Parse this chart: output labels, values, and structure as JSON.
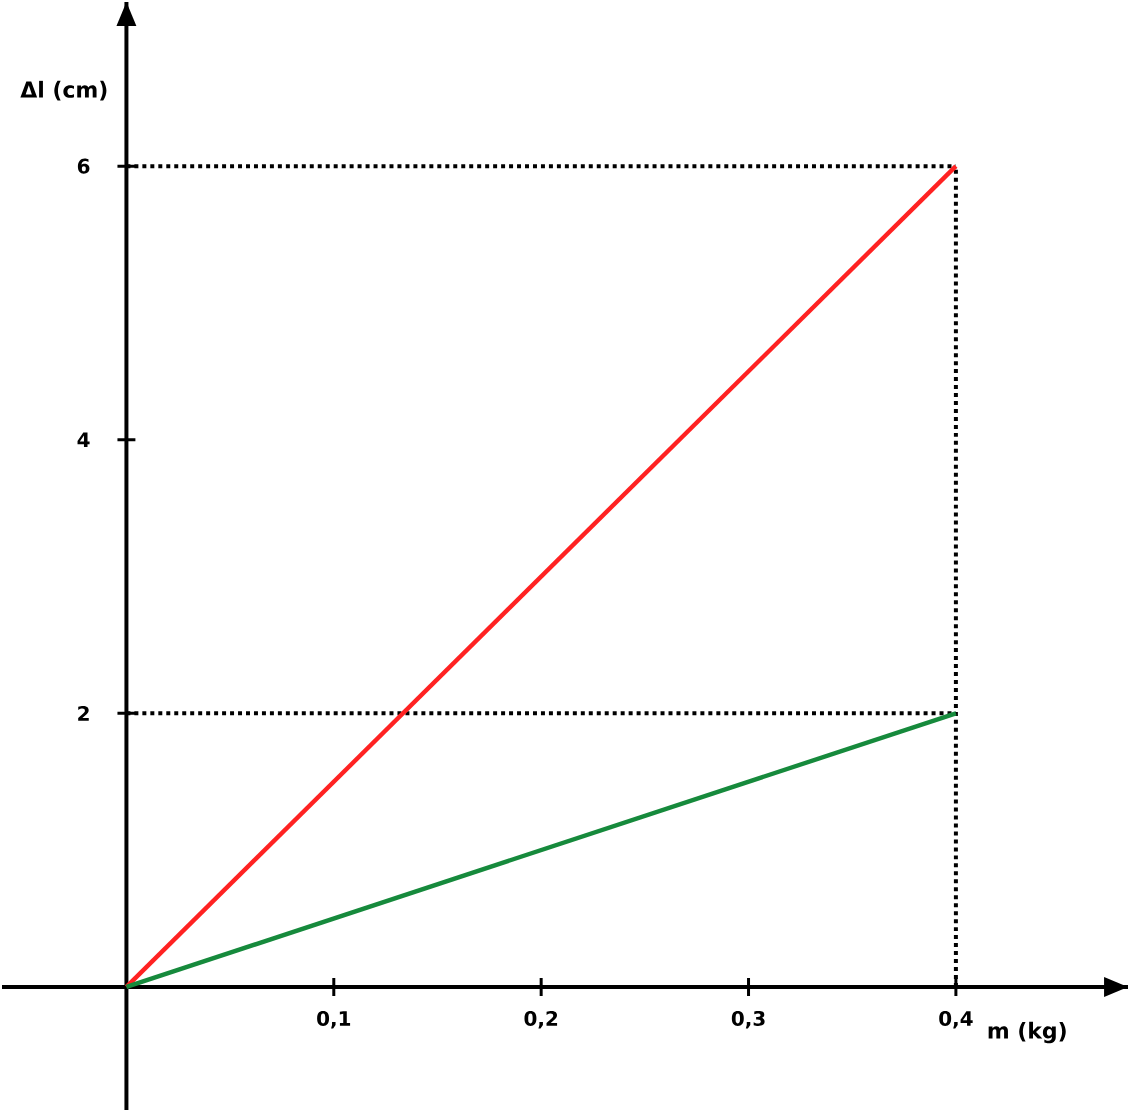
{
  "chart_data": {
    "type": "line",
    "xlabel": "m (kg)",
    "ylabel": "Δl (cm)",
    "x": [
      0,
      0.4
    ],
    "series": [
      {
        "color": "#ff2222",
        "values": [
          0,
          6
        ]
      },
      {
        "color": "#168a3c",
        "values": [
          0,
          2
        ]
      }
    ],
    "xlim": [
      -0.06,
      0.483
    ],
    "ylim": [
      -0.9,
      7.2
    ],
    "xticks": [
      {
        "value": 0.1,
        "label": "0,1"
      },
      {
        "value": 0.2,
        "label": "0,2"
      },
      {
        "value": 0.3,
        "label": "0,3"
      },
      {
        "value": 0.4,
        "label": "0,4"
      }
    ],
    "yticks": [
      2,
      4,
      6
    ],
    "ref_lines": [
      {
        "axis": "y",
        "value": 6,
        "line_style": "dotted",
        "color": "#000000"
      },
      {
        "axis": "y",
        "value": 2,
        "line_style": "dotted",
        "color": "#000000"
      },
      {
        "axis": "x",
        "value": 0.4,
        "line_style": "dotted",
        "color": "#000000"
      }
    ],
    "grid": false,
    "marker": "none",
    "line_style": "solid"
  }
}
